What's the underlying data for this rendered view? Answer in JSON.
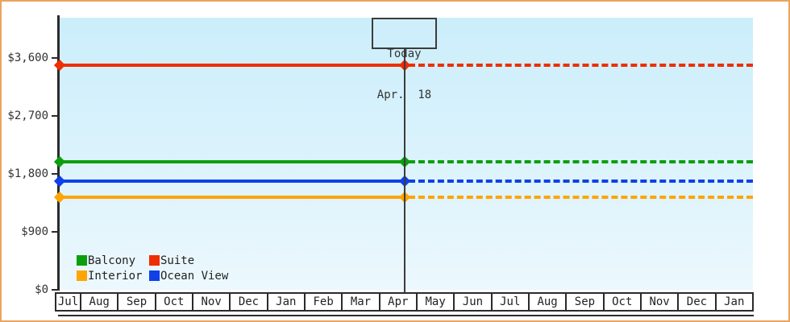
{
  "frame": {
    "border_color": "#eaa45f",
    "plot_bg_top": "#cbeefb",
    "plot_bg_bottom": "#ecf8fd"
  },
  "chart_data": {
    "type": "line",
    "title": "",
    "xlabel": "",
    "ylabel": "",
    "x_categories": [
      "Jul",
      "Aug",
      "Sep",
      "Oct",
      "Nov",
      "Dec",
      "Jan",
      "Feb",
      "Mar",
      "Apr",
      "May",
      "Jun",
      "Jul",
      "Aug",
      "Sep",
      "Oct",
      "Nov",
      "Dec",
      "Jan"
    ],
    "y_ticks": [
      {
        "label": "$3,600",
        "value": 3600
      },
      {
        "label": "$2,700",
        "value": 2700
      },
      {
        "label": "$1,800",
        "value": 1800
      },
      {
        "label": "$900",
        "value": 900
      },
      {
        "label": "$0",
        "value": 0
      }
    ],
    "ylim": [
      0,
      4225
    ],
    "grid": false,
    "legend_position": "bottom-left-inside",
    "today_marker": {
      "line1": "Today",
      "line2": "Apr.  18"
    },
    "line_style_note": "each series is flat; solid line from start to today marker (diamond endpoints), dashed projection after today",
    "series": [
      {
        "name": "Suite",
        "color": "#ee2e00",
        "value": 3490
      },
      {
        "name": "Balcony",
        "color": "#0c9f0c",
        "value": 1990
      },
      {
        "name": "Ocean View",
        "color": "#0f40e8",
        "value": 1690
      },
      {
        "name": "Interior",
        "color": "#ffa502",
        "value": 1440
      }
    ],
    "legend_order": [
      "Balcony",
      "Suite",
      "Interior",
      "Ocean View"
    ]
  }
}
